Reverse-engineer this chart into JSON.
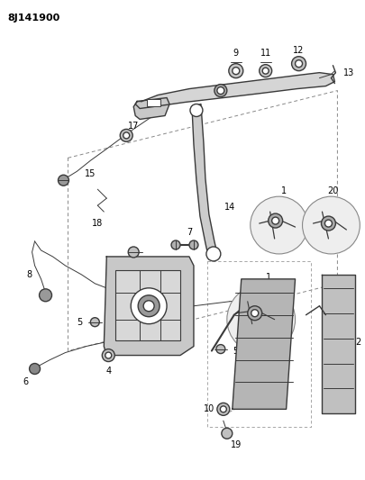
{
  "title_code": "8J141900",
  "bg_color": "#ffffff",
  "line_color": "#3a3a3a",
  "label_color": "#000000",
  "figsize": [
    4.05,
    5.33
  ],
  "dpi": 100
}
